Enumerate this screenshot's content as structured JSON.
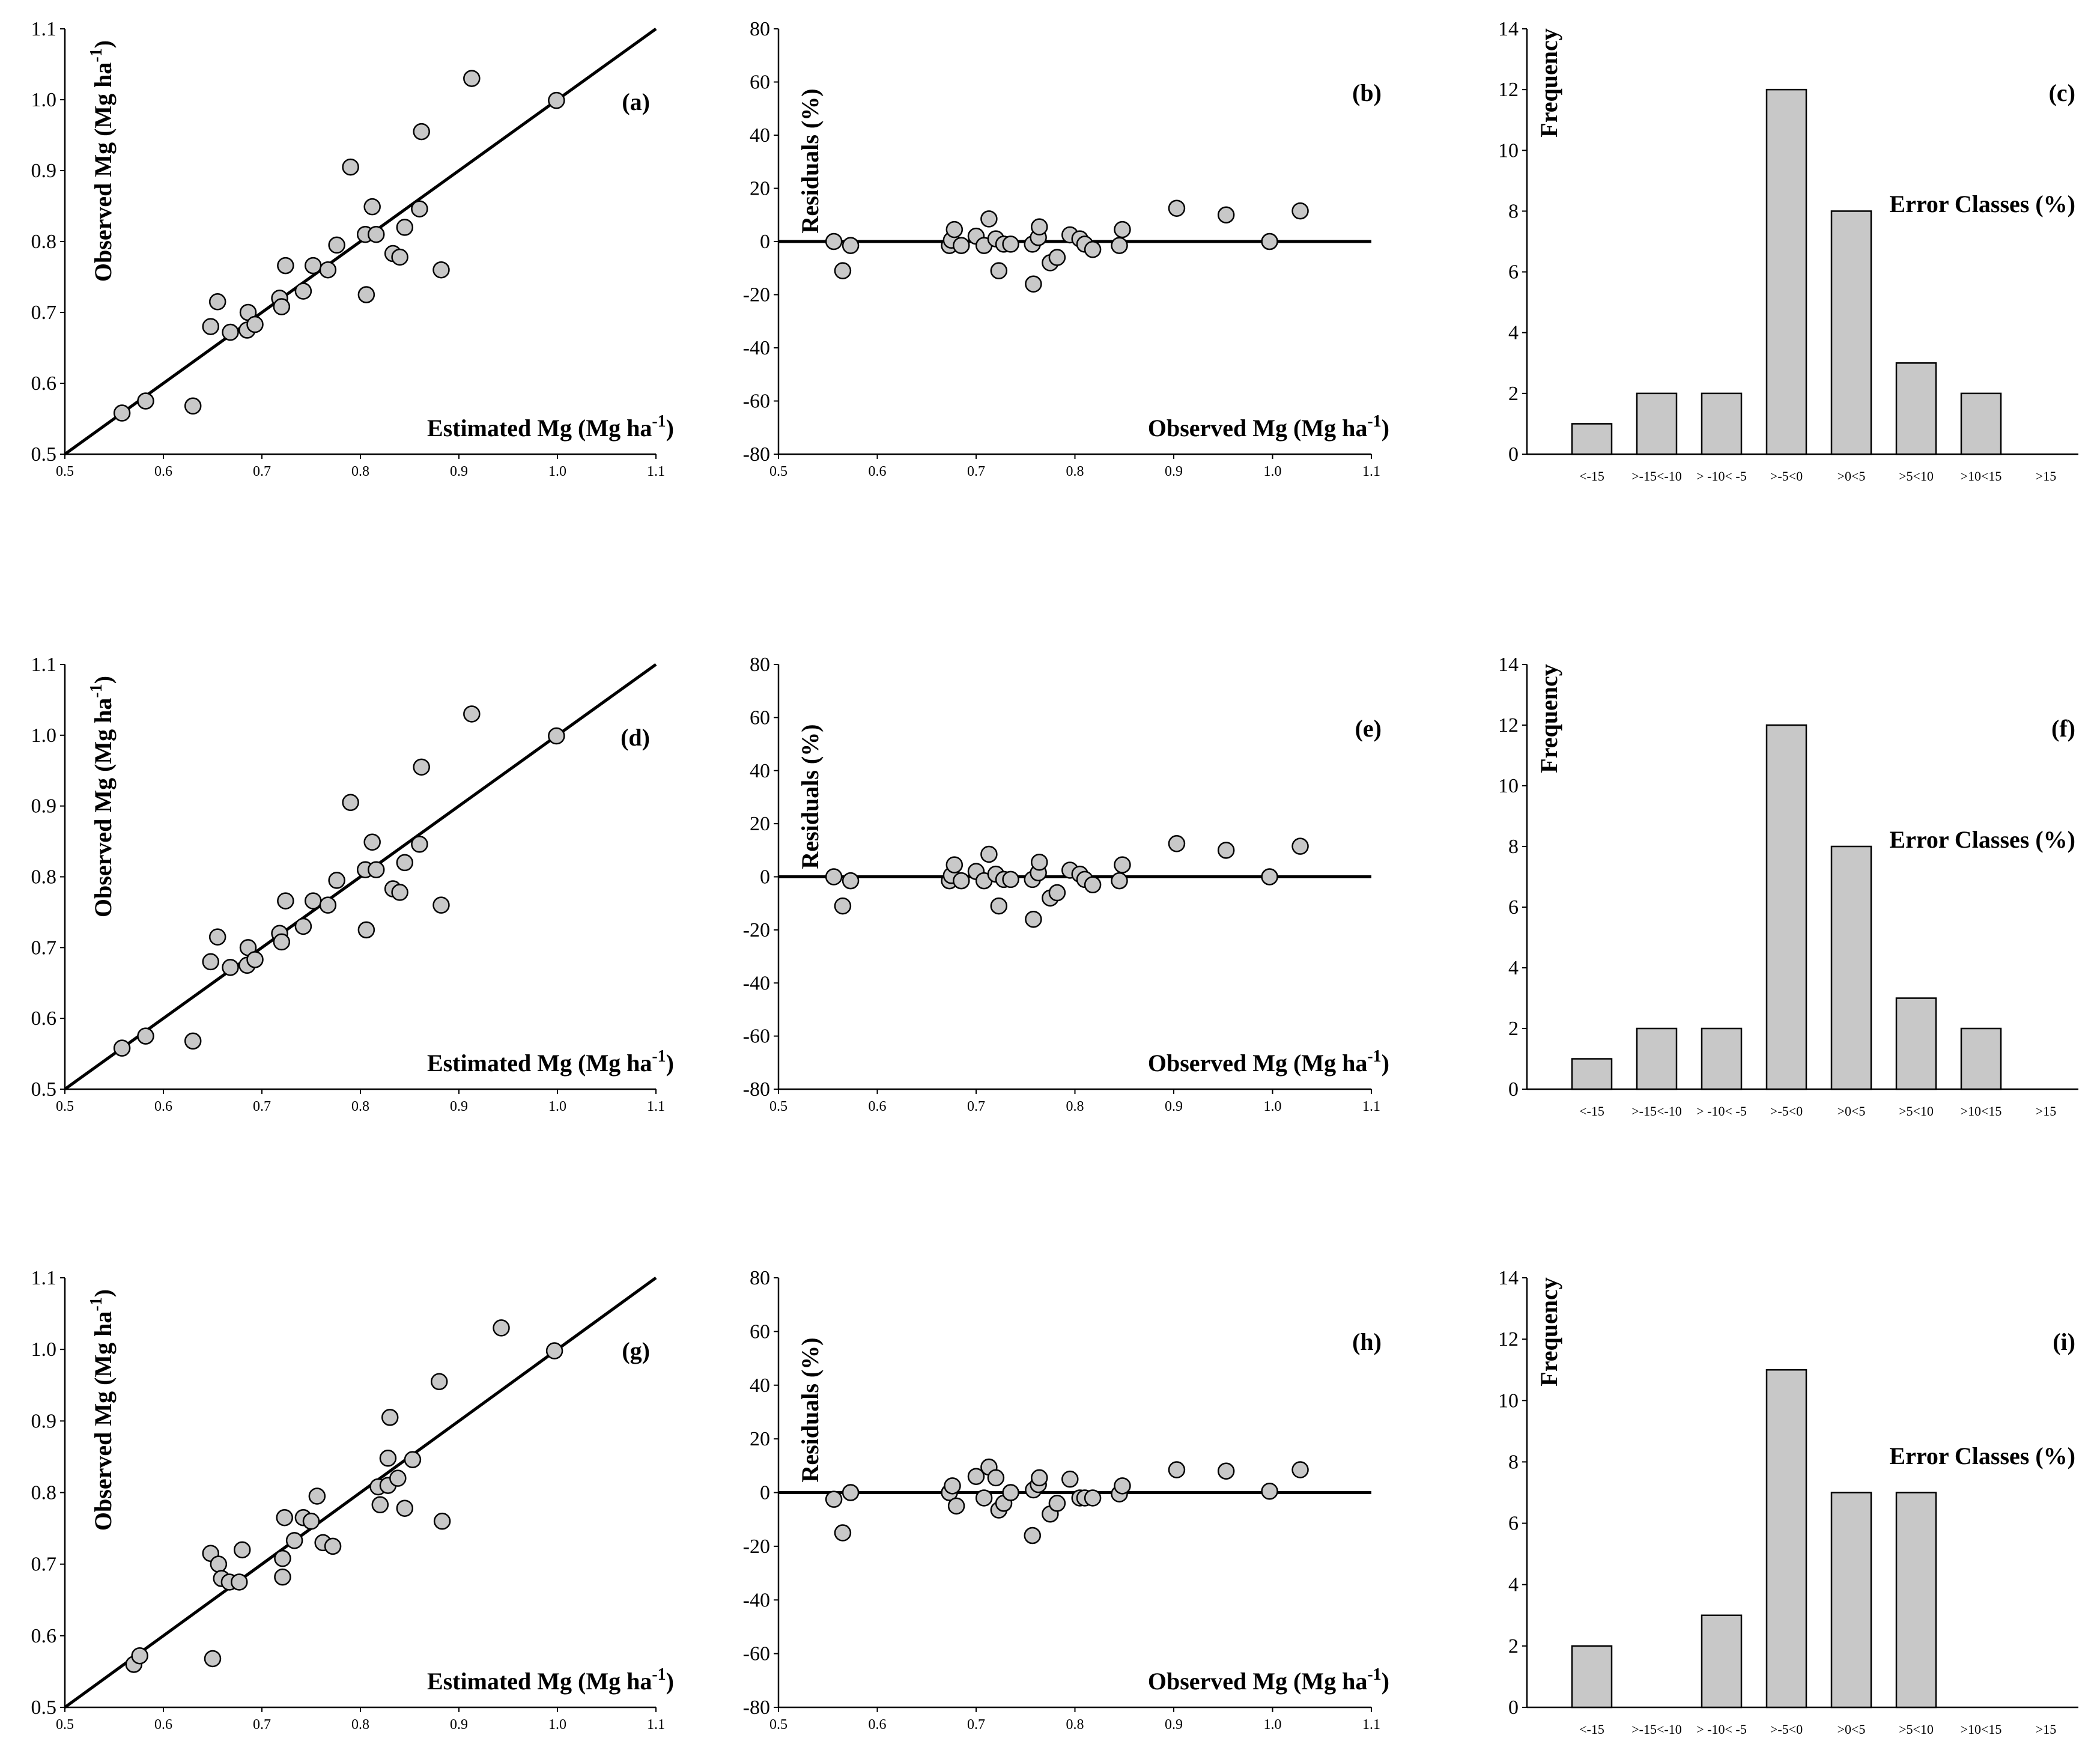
{
  "chart_data": [
    {
      "type": "scatter",
      "panel_label": "(a)",
      "xlabel": "Estimated Mg (Mg ha",
      "xlabel_sup": "-1",
      "xlabel_end": ")",
      "ylabel": "Observed Mg (Mg ha",
      "ylabel_sup": "-1",
      "ylabel_end": ")",
      "xlim": [
        0.5,
        1.1
      ],
      "ylim": [
        0.5,
        1.1
      ],
      "xticks": [
        0.5,
        0.6,
        0.7,
        0.8,
        0.9,
        1.0,
        1.1
      ],
      "xtick_labels": [
        "0.5",
        "0.6",
        "0.7",
        "0.8",
        "0.9",
        "1.0",
        "1.1"
      ],
      "yticks": [
        0.5,
        0.6,
        0.7,
        0.8,
        0.9,
        1.0,
        1.1
      ],
      "ytick_labels": [
        "0.5",
        "0.6",
        "0.7",
        "0.8",
        "0.9",
        "1.0",
        "1.1"
      ],
      "reference_line": "1:1",
      "points": [
        [
          0.558,
          0.558
        ],
        [
          0.582,
          0.575
        ],
        [
          0.63,
          0.568
        ],
        [
          0.648,
          0.68
        ],
        [
          0.655,
          0.715
        ],
        [
          0.668,
          0.672
        ],
        [
          0.685,
          0.675
        ],
        [
          0.686,
          0.7
        ],
        [
          0.693,
          0.683
        ],
        [
          0.718,
          0.72
        ],
        [
          0.72,
          0.708
        ],
        [
          0.724,
          0.766
        ],
        [
          0.742,
          0.73
        ],
        [
          0.752,
          0.766
        ],
        [
          0.767,
          0.76
        ],
        [
          0.776,
          0.795
        ],
        [
          0.79,
          0.905
        ],
        [
          0.805,
          0.81
        ],
        [
          0.806,
          0.725
        ],
        [
          0.812,
          0.849
        ],
        [
          0.816,
          0.81
        ],
        [
          0.833,
          0.783
        ],
        [
          0.84,
          0.778
        ],
        [
          0.845,
          0.82
        ],
        [
          0.86,
          0.846
        ],
        [
          0.862,
          0.955
        ],
        [
          0.882,
          0.76
        ],
        [
          0.913,
          1.03
        ],
        [
          0.999,
          0.999
        ]
      ]
    },
    {
      "type": "scatter",
      "panel_label": "(b)",
      "xlabel": "Observed Mg (Mg ha",
      "xlabel_sup": "-1",
      "xlabel_end": ")",
      "ylabel": "Residuals (%)",
      "xlim": [
        0.5,
        1.1
      ],
      "ylim": [
        -80,
        80
      ],
      "xticks": [
        0.5,
        0.6,
        0.7,
        0.8,
        0.9,
        1.0,
        1.1
      ],
      "xtick_labels": [
        "0.5",
        "0.6",
        "0.7",
        "0.8",
        "0.9",
        "1.0",
        "1.1"
      ],
      "yticks": [
        -80,
        -60,
        -40,
        -20,
        0,
        20,
        40,
        60,
        80
      ],
      "ytick_labels": [
        "-80",
        "-60",
        "-40",
        "-20",
        "0",
        "20",
        "40",
        "60",
        "80"
      ],
      "reference_line": "y=0",
      "points": [
        [
          0.556,
          0
        ],
        [
          0.565,
          -11
        ],
        [
          0.573,
          -1.5
        ],
        [
          0.673,
          -1.5
        ],
        [
          0.675,
          0.5
        ],
        [
          0.678,
          4.5
        ],
        [
          0.685,
          -1.5
        ],
        [
          0.7,
          2
        ],
        [
          0.708,
          -1.5
        ],
        [
          0.713,
          8.5
        ],
        [
          0.72,
          1
        ],
        [
          0.723,
          -11
        ],
        [
          0.728,
          -1
        ],
        [
          0.735,
          -1
        ],
        [
          0.757,
          -1
        ],
        [
          0.758,
          -16
        ],
        [
          0.763,
          1.5
        ],
        [
          0.764,
          5.5
        ],
        [
          0.775,
          -8
        ],
        [
          0.782,
          -6
        ],
        [
          0.795,
          2.5
        ],
        [
          0.805,
          1
        ],
        [
          0.81,
          -1
        ],
        [
          0.818,
          -3
        ],
        [
          0.845,
          -1.5
        ],
        [
          0.848,
          4.5
        ],
        [
          0.903,
          12.5
        ],
        [
          0.953,
          10
        ],
        [
          0.997,
          0
        ],
        [
          1.028,
          11.5
        ]
      ]
    },
    {
      "type": "bar",
      "panel_label": "(c)",
      "ylabel": "Frequency",
      "xlabel": "Error Classes (%)",
      "ylim": [
        0,
        14
      ],
      "yticks": [
        0,
        2,
        4,
        6,
        8,
        10,
        12,
        14
      ],
      "ytick_labels": [
        "0",
        "2",
        "4",
        "6",
        "8",
        "10",
        "12",
        "14"
      ],
      "categories": [
        "<-15",
        ">-15<-10",
        "> -10< -5",
        ">-5<0",
        ">0<5",
        ">5<10",
        ">10<15",
        ">15"
      ],
      "values": [
        1,
        2,
        2,
        12,
        8,
        3,
        2,
        0
      ]
    },
    {
      "type": "scatter",
      "panel_label": "(d)",
      "xlabel": "Estimated Mg (Mg ha",
      "xlabel_sup": "-1",
      "xlabel_end": ")",
      "ylabel": "Observed Mg (Mg ha",
      "ylabel_sup": "-1",
      "ylabel_end": ")",
      "xlim": [
        0.5,
        1.1
      ],
      "ylim": [
        0.5,
        1.1
      ],
      "xticks": [
        0.5,
        0.6,
        0.7,
        0.8,
        0.9,
        1.0,
        1.1
      ],
      "xtick_labels": [
        "0.5",
        "0.6",
        "0.7",
        "0.8",
        "0.9",
        "1.0",
        "1.1"
      ],
      "yticks": [
        0.5,
        0.6,
        0.7,
        0.8,
        0.9,
        1.0,
        1.1
      ],
      "ytick_labels": [
        "0.5",
        "0.6",
        "0.7",
        "0.8",
        "0.9",
        "1.0",
        "1.1"
      ],
      "reference_line": "1:1",
      "points": [
        [
          0.558,
          0.558
        ],
        [
          0.582,
          0.575
        ],
        [
          0.63,
          0.568
        ],
        [
          0.648,
          0.68
        ],
        [
          0.655,
          0.715
        ],
        [
          0.668,
          0.672
        ],
        [
          0.685,
          0.675
        ],
        [
          0.686,
          0.7
        ],
        [
          0.693,
          0.683
        ],
        [
          0.718,
          0.72
        ],
        [
          0.72,
          0.708
        ],
        [
          0.724,
          0.766
        ],
        [
          0.742,
          0.73
        ],
        [
          0.752,
          0.766
        ],
        [
          0.767,
          0.76
        ],
        [
          0.776,
          0.795
        ],
        [
          0.79,
          0.905
        ],
        [
          0.805,
          0.81
        ],
        [
          0.806,
          0.725
        ],
        [
          0.812,
          0.849
        ],
        [
          0.816,
          0.81
        ],
        [
          0.833,
          0.783
        ],
        [
          0.84,
          0.778
        ],
        [
          0.845,
          0.82
        ],
        [
          0.86,
          0.846
        ],
        [
          0.862,
          0.955
        ],
        [
          0.882,
          0.76
        ],
        [
          0.913,
          1.03
        ],
        [
          0.999,
          0.999
        ]
      ]
    },
    {
      "type": "scatter",
      "panel_label": "(e)",
      "xlabel": "Observed Mg (Mg ha",
      "xlabel_sup": "-1",
      "xlabel_end": ")",
      "ylabel": "Residuals (%)",
      "xlim": [
        0.5,
        1.1
      ],
      "ylim": [
        -80,
        80
      ],
      "xticks": [
        0.5,
        0.6,
        0.7,
        0.8,
        0.9,
        1.0,
        1.1
      ],
      "xtick_labels": [
        "0.5",
        "0.6",
        "0.7",
        "0.8",
        "0.9",
        "1.0",
        "1.1"
      ],
      "yticks": [
        -80,
        -60,
        -40,
        -20,
        0,
        20,
        40,
        60,
        80
      ],
      "ytick_labels": [
        "-80",
        "-60",
        "-40",
        "-20",
        "0",
        "20",
        "40",
        "60",
        "80"
      ],
      "reference_line": "y=0",
      "points": [
        [
          0.556,
          0
        ],
        [
          0.565,
          -11
        ],
        [
          0.573,
          -1.5
        ],
        [
          0.673,
          -1.5
        ],
        [
          0.675,
          0.5
        ],
        [
          0.678,
          4.5
        ],
        [
          0.685,
          -1.5
        ],
        [
          0.7,
          2
        ],
        [
          0.708,
          -1.5
        ],
        [
          0.713,
          8.5
        ],
        [
          0.72,
          1
        ],
        [
          0.723,
          -11
        ],
        [
          0.728,
          -1
        ],
        [
          0.735,
          -1
        ],
        [
          0.757,
          -1
        ],
        [
          0.758,
          -16
        ],
        [
          0.763,
          1.5
        ],
        [
          0.764,
          5.5
        ],
        [
          0.775,
          -8
        ],
        [
          0.782,
          -6
        ],
        [
          0.795,
          2.5
        ],
        [
          0.805,
          1
        ],
        [
          0.81,
          -1
        ],
        [
          0.818,
          -3
        ],
        [
          0.845,
          -1.5
        ],
        [
          0.848,
          4.5
        ],
        [
          0.903,
          12.5
        ],
        [
          0.953,
          10
        ],
        [
          0.997,
          0
        ],
        [
          1.028,
          11.5
        ]
      ]
    },
    {
      "type": "bar",
      "panel_label": "(f)",
      "ylabel": "Frequency",
      "xlabel": "Error Classes (%)",
      "ylim": [
        0,
        14
      ],
      "yticks": [
        0,
        2,
        4,
        6,
        8,
        10,
        12,
        14
      ],
      "ytick_labels": [
        "0",
        "2",
        "4",
        "6",
        "8",
        "10",
        "12",
        "14"
      ],
      "categories": [
        "<-15",
        ">-15<-10",
        "> -10< -5",
        ">-5<0",
        ">0<5",
        ">5<10",
        ">10<15",
        ">15"
      ],
      "values": [
        1,
        2,
        2,
        12,
        8,
        3,
        2,
        0
      ]
    },
    {
      "type": "scatter",
      "panel_label": "(g)",
      "xlabel": "Estimated Mg (Mg ha",
      "xlabel_sup": "-1",
      "xlabel_end": ")",
      "ylabel": "Observed Mg (Mg ha",
      "ylabel_sup": "-1",
      "ylabel_end": ")",
      "xlim": [
        0.5,
        1.1
      ],
      "ylim": [
        0.5,
        1.1
      ],
      "xticks": [
        0.5,
        0.6,
        0.7,
        0.8,
        0.9,
        1.0,
        1.1
      ],
      "xtick_labels": [
        "0.5",
        "0.6",
        "0.7",
        "0.8",
        "0.9",
        "1.0",
        "1.1"
      ],
      "yticks": [
        0.5,
        0.6,
        0.7,
        0.8,
        0.9,
        1.0,
        1.1
      ],
      "ytick_labels": [
        "0.5",
        "0.6",
        "0.7",
        "0.8",
        "0.9",
        "1.0",
        "1.1"
      ],
      "reference_line": "1:1",
      "points": [
        [
          0.57,
          0.56
        ],
        [
          0.576,
          0.572
        ],
        [
          0.648,
          0.715
        ],
        [
          0.65,
          0.568
        ],
        [
          0.656,
          0.7
        ],
        [
          0.659,
          0.68
        ],
        [
          0.667,
          0.675
        ],
        [
          0.677,
          0.675
        ],
        [
          0.68,
          0.72
        ],
        [
          0.721,
          0.708
        ],
        [
          0.723,
          0.765
        ],
        [
          0.721,
          0.682
        ],
        [
          0.733,
          0.733
        ],
        [
          0.742,
          0.765
        ],
        [
          0.75,
          0.76
        ],
        [
          0.756,
          0.795
        ],
        [
          0.762,
          0.73
        ],
        [
          0.772,
          0.725
        ],
        [
          0.818,
          0.808
        ],
        [
          0.82,
          0.783
        ],
        [
          0.828,
          0.81
        ],
        [
          0.828,
          0.848
        ],
        [
          0.83,
          0.905
        ],
        [
          0.838,
          0.82
        ],
        [
          0.845,
          0.778
        ],
        [
          0.853,
          0.846
        ],
        [
          0.88,
          0.955
        ],
        [
          0.883,
          0.76
        ],
        [
          0.943,
          1.03
        ],
        [
          0.997,
          0.998
        ]
      ]
    },
    {
      "type": "scatter",
      "panel_label": "(h)",
      "xlabel": "Observed Mg (Mg ha",
      "xlabel_sup": "-1",
      "xlabel_end": ")",
      "ylabel": "Residuals (%)",
      "xlim": [
        0.5,
        1.1
      ],
      "ylim": [
        -80,
        80
      ],
      "xticks": [
        0.5,
        0.6,
        0.7,
        0.8,
        0.9,
        1.0,
        1.1
      ],
      "xtick_labels": [
        "0.5",
        "0.6",
        "0.7",
        "0.8",
        "0.9",
        "1.0",
        "1.1"
      ],
      "yticks": [
        -80,
        -60,
        -40,
        -20,
        0,
        20,
        40,
        60,
        80
      ],
      "ytick_labels": [
        "-80",
        "-60",
        "-40",
        "-20",
        "0",
        "20",
        "40",
        "60",
        "80"
      ],
      "reference_line": "y=0",
      "points": [
        [
          0.556,
          -2.5
        ],
        [
          0.565,
          -15
        ],
        [
          0.573,
          0
        ],
        [
          0.673,
          0
        ],
        [
          0.676,
          2.5
        ],
        [
          0.68,
          -5
        ],
        [
          0.7,
          6
        ],
        [
          0.708,
          -2
        ],
        [
          0.713,
          9.5
        ],
        [
          0.72,
          5.5
        ],
        [
          0.723,
          -6.5
        ],
        [
          0.728,
          -4
        ],
        [
          0.735,
          0
        ],
        [
          0.757,
          -16
        ],
        [
          0.758,
          1
        ],
        [
          0.763,
          3
        ],
        [
          0.764,
          5.5
        ],
        [
          0.775,
          -8
        ],
        [
          0.782,
          -4
        ],
        [
          0.795,
          5
        ],
        [
          0.805,
          -2
        ],
        [
          0.81,
          -2
        ],
        [
          0.818,
          -2
        ],
        [
          0.845,
          -0.5
        ],
        [
          0.848,
          2.5
        ],
        [
          0.903,
          8.5
        ],
        [
          0.953,
          8
        ],
        [
          0.997,
          0.5
        ],
        [
          1.028,
          8.5
        ]
      ]
    },
    {
      "type": "bar",
      "panel_label": "(i)",
      "ylabel": "Frequency",
      "xlabel": "Error Classes (%)",
      "ylim": [
        0,
        14
      ],
      "yticks": [
        0,
        2,
        4,
        6,
        8,
        10,
        12,
        14
      ],
      "ytick_labels": [
        "0",
        "2",
        "4",
        "6",
        "8",
        "10",
        "12",
        "14"
      ],
      "categories": [
        "<-15",
        ">-15<-10",
        "> -10< -5",
        ">-5<0",
        ">0<5",
        ">5<10",
        ">10<15",
        ">15"
      ],
      "values": [
        2,
        0,
        3,
        11,
        7,
        7,
        0,
        0
      ]
    }
  ]
}
